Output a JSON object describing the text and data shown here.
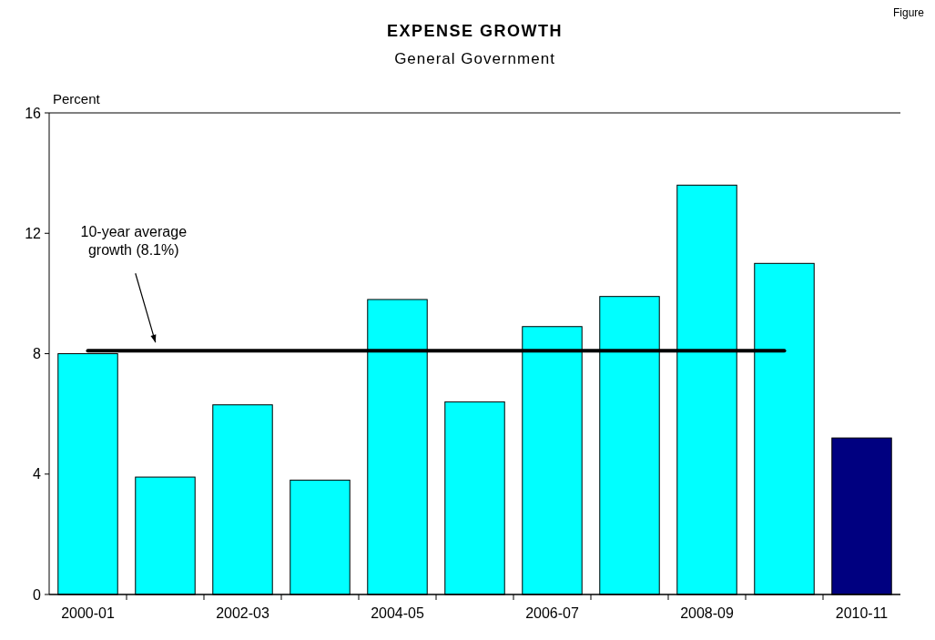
{
  "chart_data": {
    "type": "bar",
    "title": "EXPENSE GROWTH",
    "subtitle": "General Government",
    "ylabel": "Percent",
    "categories": [
      "2000-01",
      null,
      "2002-03",
      null,
      "2004-05",
      null,
      "2006-07",
      null,
      "2008-09",
      null,
      "2010-11"
    ],
    "values": [
      8.0,
      3.9,
      6.3,
      3.8,
      9.8,
      6.4,
      8.9,
      9.9,
      13.6,
      11.0,
      5.2
    ],
    "colors": [
      "#00ffff",
      "#00ffff",
      "#00ffff",
      "#00ffff",
      "#00ffff",
      "#00ffff",
      "#00ffff",
      "#00ffff",
      "#00ffff",
      "#00ffff",
      "#000080"
    ],
    "ylim": [
      0,
      16
    ],
    "yticks": [
      0,
      4,
      8,
      12,
      16
    ],
    "grid": false,
    "ref_lines": [
      {
        "axis": "y",
        "value": 8.1,
        "label": "10-year average growth (8.1%)",
        "color": "#000000"
      }
    ],
    "annotations": [
      "Figure"
    ]
  }
}
